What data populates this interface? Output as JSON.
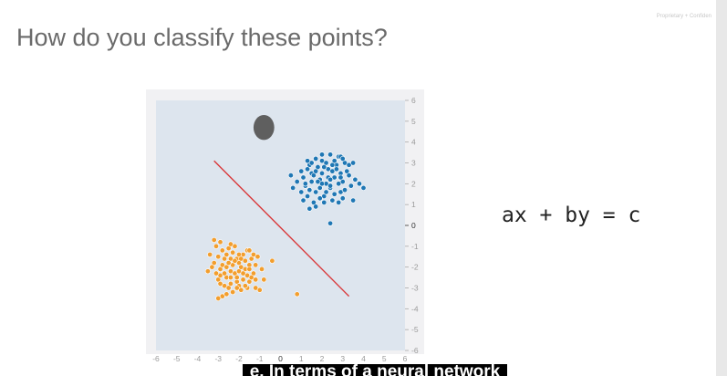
{
  "slide": {
    "title": "How do you classify these points?",
    "confidential_note": "Proprietary + Confiden",
    "equation": "ax + by = c",
    "subtitle_caption": "e. In terms of a neural network"
  },
  "colors": {
    "plot_background": "#dde5ee",
    "plot_border": "#f1f1f3",
    "class_blue": "#1f77b4",
    "class_orange": "#f29e2e",
    "decision_line": "#d9383a",
    "cursor_blob": "#5f5f5f"
  },
  "chart_data": {
    "type": "scatter",
    "title": "",
    "xlabel": "",
    "ylabel": "",
    "xlim": [
      -6,
      6
    ],
    "ylim": [
      -6,
      6
    ],
    "x_ticks": [
      "-6",
      "-5",
      "-4",
      "-3",
      "-2",
      "-1",
      "0",
      "1",
      "2",
      "3",
      "4",
      "5",
      "6"
    ],
    "y_ticks": [
      "6",
      "5",
      "4",
      "3",
      "2",
      "1",
      "0",
      "-1",
      "-2",
      "-3",
      "-4",
      "-5",
      "-6"
    ],
    "grid": false,
    "legend": "none",
    "series": [
      {
        "color": "blue",
        "points": [
          [
            1.9,
            2.2
          ],
          [
            2.4,
            1.8
          ],
          [
            1.5,
            2.5
          ],
          [
            2.7,
            2.9
          ],
          [
            2.1,
            1.4
          ],
          [
            1.2,
            1.9
          ],
          [
            3.0,
            2.1
          ],
          [
            2.3,
            2.7
          ],
          [
            1.7,
            1.6
          ],
          [
            2.6,
            2.3
          ],
          [
            2.0,
            3.1
          ],
          [
            1.4,
            2.9
          ],
          [
            2.9,
            1.6
          ],
          [
            2.2,
            2.0
          ],
          [
            1.8,
            2.8
          ],
          [
            3.2,
            2.6
          ],
          [
            2.5,
            1.2
          ],
          [
            1.1,
            2.3
          ],
          [
            2.8,
            3.3
          ],
          [
            1.6,
            1.1
          ],
          [
            3.4,
            1.9
          ],
          [
            2.0,
            2.5
          ],
          [
            2.4,
            3.4
          ],
          [
            1.3,
            1.4
          ],
          [
            3.1,
            3.0
          ],
          [
            2.6,
            1.5
          ],
          [
            1.9,
            1.8
          ],
          [
            2.2,
            3.0
          ],
          [
            1.5,
            2.1
          ],
          [
            2.8,
            2.0
          ],
          [
            3.3,
            2.4
          ],
          [
            2.1,
            1.1
          ],
          [
            1.0,
            2.6
          ],
          [
            2.5,
            2.6
          ],
          [
            1.7,
            3.2
          ],
          [
            3.0,
            1.3
          ],
          [
            2.3,
            2.3
          ],
          [
            1.4,
            1.7
          ],
          [
            2.7,
            2.7
          ],
          [
            1.9,
            1.3
          ],
          [
            2.0,
            3.4
          ],
          [
            2.9,
            2.5
          ],
          [
            1.6,
            2.4
          ],
          [
            2.4,
            1.9
          ],
          [
            3.6,
            2.2
          ],
          [
            1.2,
            2.0
          ],
          [
            2.6,
            3.1
          ],
          [
            1.8,
            2.1
          ],
          [
            2.2,
            1.6
          ],
          [
            3.1,
            1.7
          ],
          [
            1.5,
            3.0
          ],
          [
            2.8,
            1.1
          ],
          [
            2.0,
            2.0
          ],
          [
            2.4,
            2.2
          ],
          [
            1.7,
            2.6
          ],
          [
            2.5,
            2.9
          ],
          [
            3.3,
            2.9
          ],
          [
            1.3,
            2.7
          ],
          [
            2.1,
            2.8
          ],
          [
            2.9,
            2.3
          ],
          [
            0.5,
            2.4
          ],
          [
            0.8,
            2.1
          ],
          [
            0.6,
            1.8
          ],
          [
            1.0,
            1.6
          ],
          [
            1.4,
            0.8
          ],
          [
            1.7,
            0.9
          ],
          [
            4.0,
            1.8
          ],
          [
            3.8,
            2.0
          ],
          [
            3.5,
            1.2
          ],
          [
            2.4,
            0.1
          ],
          [
            1.1,
            1.2
          ],
          [
            1.3,
            3.1
          ],
          [
            2.9,
            3.3
          ],
          [
            3.0,
            3.2
          ],
          [
            3.5,
            3.0
          ]
        ]
      },
      {
        "color": "orange",
        "points": [
          [
            -2.0,
            -1.8
          ],
          [
            -2.4,
            -2.2
          ],
          [
            -1.6,
            -2.4
          ],
          [
            -2.7,
            -1.6
          ],
          [
            -2.1,
            -2.7
          ],
          [
            -1.8,
            -1.4
          ],
          [
            -2.9,
            -2.1
          ],
          [
            -2.3,
            -1.3
          ],
          [
            -1.5,
            -1.9
          ],
          [
            -2.6,
            -2.5
          ],
          [
            -2.0,
            -2.9
          ],
          [
            -1.7,
            -2.1
          ],
          [
            -2.8,
            -1.9
          ],
          [
            -2.2,
            -2.3
          ],
          [
            -1.4,
            -1.6
          ],
          [
            -3.0,
            -2.6
          ],
          [
            -2.5,
            -1.1
          ],
          [
            -1.9,
            -3.1
          ],
          [
            -2.4,
            -2.8
          ],
          [
            -1.6,
            -1.2
          ],
          [
            -3.2,
            -1.8
          ],
          [
            -2.1,
            -1.6
          ],
          [
            -1.3,
            -2.3
          ],
          [
            -2.7,
            -2.9
          ],
          [
            -1.8,
            -2.6
          ],
          [
            -2.3,
            -1.9
          ],
          [
            -2.6,
            -1.4
          ],
          [
            -1.5,
            -2.7
          ],
          [
            -2.0,
            -2.2
          ],
          [
            -2.9,
            -2.4
          ],
          [
            -1.2,
            -1.9
          ],
          [
            -2.2,
            -1.0
          ],
          [
            -1.7,
            -1.7
          ],
          [
            -2.5,
            -3.0
          ],
          [
            -3.1,
            -2.3
          ],
          [
            -1.9,
            -2.0
          ],
          [
            -2.4,
            -1.6
          ],
          [
            -1.6,
            -3.0
          ],
          [
            -2.8,
            -1.2
          ],
          [
            -2.1,
            -2.5
          ],
          [
            -1.4,
            -2.5
          ],
          [
            -3.3,
            -2.0
          ],
          [
            -2.0,
            -1.4
          ],
          [
            -2.6,
            -2.0
          ],
          [
            -1.8,
            -2.3
          ],
          [
            -2.3,
            -3.2
          ],
          [
            -1.3,
            -1.4
          ],
          [
            -2.9,
            -2.8
          ],
          [
            -2.2,
            -1.7
          ],
          [
            -1.5,
            -2.1
          ],
          [
            -2.7,
            -2.3
          ],
          [
            -1.9,
            -1.6
          ],
          [
            -2.4,
            -2.5
          ],
          [
            -1.7,
            -2.9
          ],
          [
            -3.0,
            -1.5
          ],
          [
            -2.1,
            -3.0
          ],
          [
            -1.2,
            -2.6
          ],
          [
            -2.5,
            -1.8
          ],
          [
            -1.1,
            -1.5
          ],
          [
            -0.9,
            -2.1
          ],
          [
            -0.8,
            -2.6
          ],
          [
            -1.0,
            -3.1
          ],
          [
            -1.2,
            -3.0
          ],
          [
            -0.4,
            -1.7
          ],
          [
            -2.8,
            -3.4
          ],
          [
            -3.0,
            -3.5
          ],
          [
            -3.1,
            -1.0
          ],
          [
            -3.4,
            -1.4
          ],
          [
            -2.9,
            -0.8
          ],
          [
            -3.2,
            -0.7
          ],
          [
            -2.4,
            -0.9
          ],
          [
            -3.5,
            -2.2
          ],
          [
            0.8,
            -3.3
          ],
          [
            -1.5,
            -1.2
          ],
          [
            -2.6,
            -3.3
          ]
        ]
      }
    ],
    "decision_line": {
      "from": [
        -3.2,
        3.1
      ],
      "to": [
        3.3,
        -3.4
      ]
    },
    "cursor_blob": {
      "center": [
        -0.8,
        4.7
      ],
      "rx": 0.5,
      "ry": 0.6
    }
  }
}
